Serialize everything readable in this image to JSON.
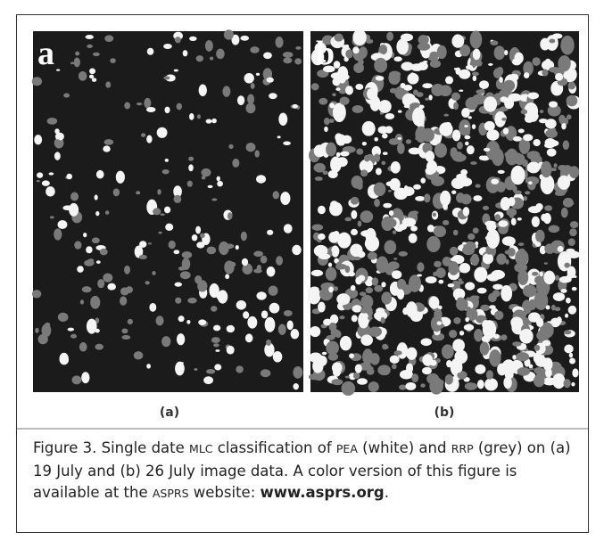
{
  "figure": {
    "panels": [
      {
        "letter": "a",
        "label": "(a)"
      },
      {
        "letter": "b",
        "label": "(b)"
      }
    ],
    "caption": [
      "Figure 3. Single date ",
      "MLC",
      " classification of ",
      "PEA",
      " (white) and ",
      "RRP",
      " (grey) on (a) 19 July and (b) 26 July image data. A color version of this figure is available at the ",
      "ASPRS",
      " website: ",
      "www.asprs.org",
      "."
    ]
  }
}
